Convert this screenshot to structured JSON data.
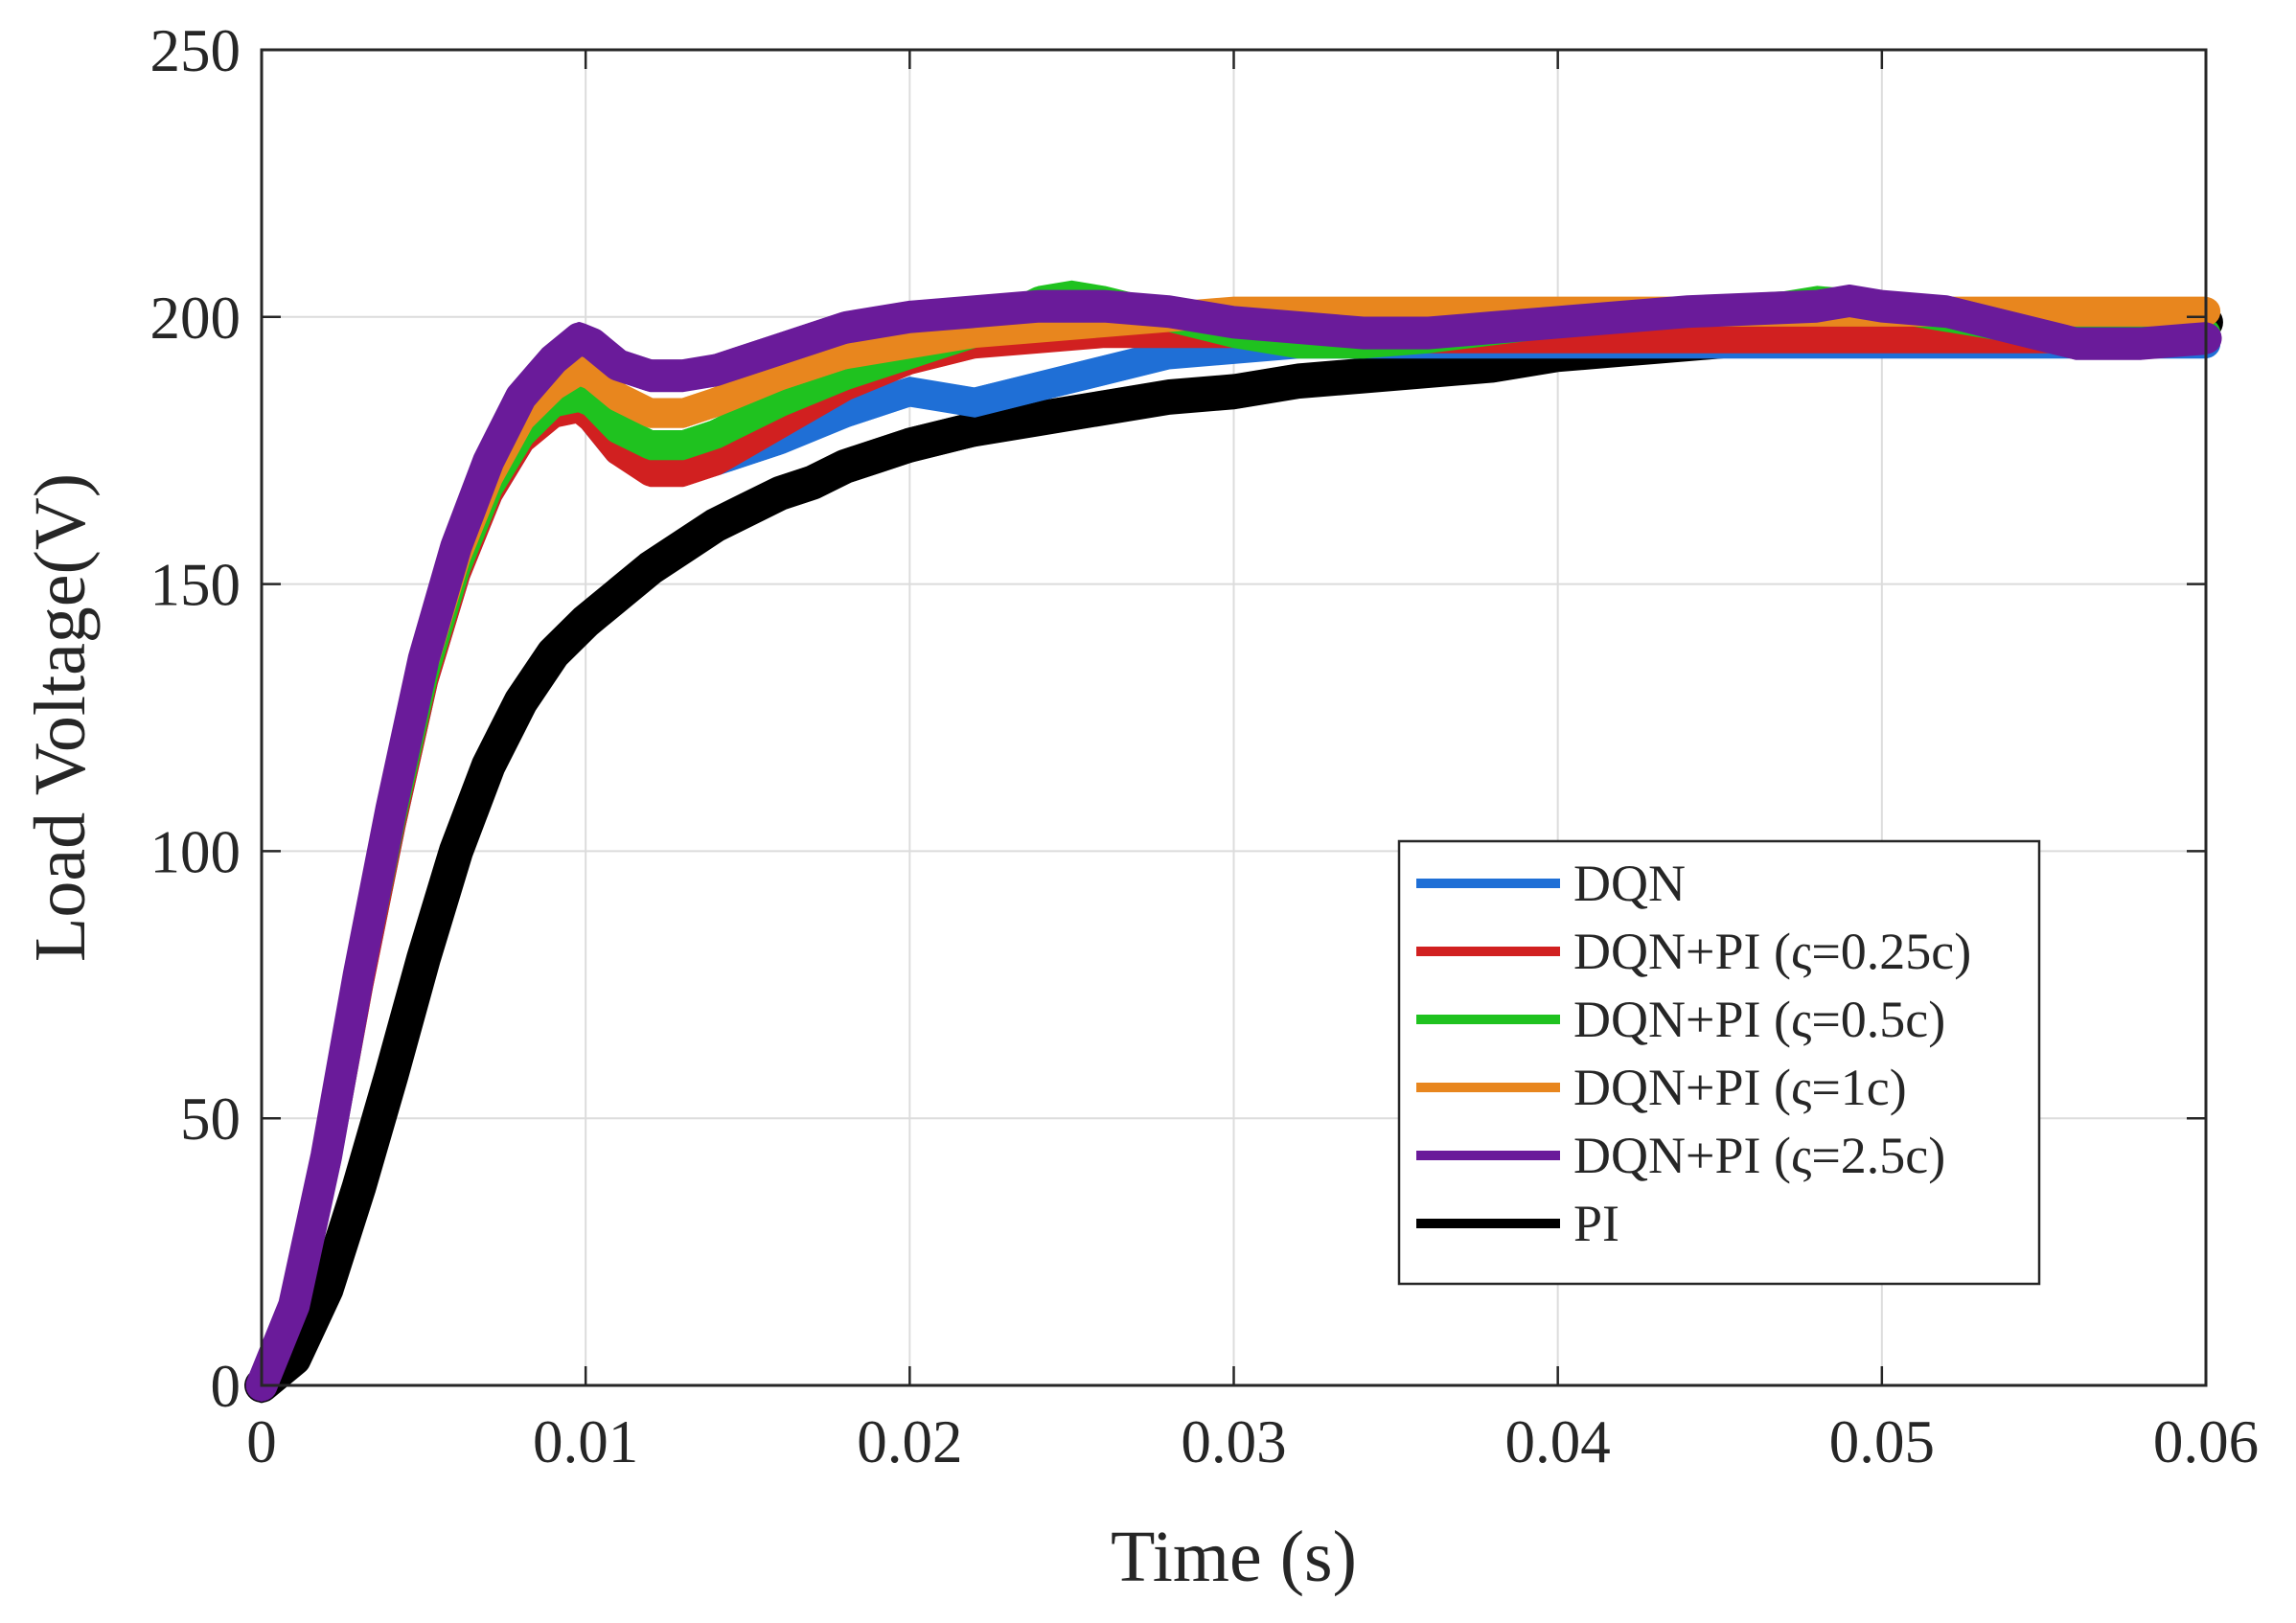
{
  "chart_data": {
    "type": "line",
    "title": "",
    "xlabel": "Time (s)",
    "ylabel": "Load Voltage(V)",
    "xlim": [
      0,
      0.06
    ],
    "ylim": [
      0,
      250
    ],
    "grid": true,
    "legend_position": "lower-right",
    "x_ticks": [
      0,
      0.01,
      0.02,
      0.03,
      0.04,
      0.05,
      0.06
    ],
    "x_tick_labels": [
      "0",
      "0.01",
      "0.02",
      "0.03",
      "0.04",
      "0.05",
      "0.06"
    ],
    "y_ticks": [
      0,
      50,
      100,
      150,
      200,
      250
    ],
    "y_tick_labels": [
      "0",
      "50",
      "100",
      "150",
      "200",
      "250"
    ],
    "series": [
      {
        "name": "PI",
        "color": "#000000",
        "band": 5,
        "points": [
          [
            0,
            0
          ],
          [
            0.001,
            5
          ],
          [
            0.002,
            18
          ],
          [
            0.003,
            37
          ],
          [
            0.004,
            58
          ],
          [
            0.005,
            80
          ],
          [
            0.006,
            100
          ],
          [
            0.007,
            116
          ],
          [
            0.008,
            128
          ],
          [
            0.009,
            137
          ],
          [
            0.01,
            143
          ],
          [
            0.011,
            148
          ],
          [
            0.012,
            153
          ],
          [
            0.013,
            157
          ],
          [
            0.014,
            161
          ],
          [
            0.015,
            164
          ],
          [
            0.016,
            167
          ],
          [
            0.017,
            169
          ],
          [
            0.018,
            172
          ],
          [
            0.019,
            174
          ],
          [
            0.02,
            176
          ],
          [
            0.022,
            179
          ],
          [
            0.024,
            181
          ],
          [
            0.026,
            183
          ],
          [
            0.028,
            185
          ],
          [
            0.03,
            186
          ],
          [
            0.032,
            188
          ],
          [
            0.034,
            189
          ],
          [
            0.036,
            190
          ],
          [
            0.038,
            191
          ],
          [
            0.04,
            193
          ],
          [
            0.042,
            194
          ],
          [
            0.044,
            195
          ],
          [
            0.046,
            196
          ],
          [
            0.048,
            197
          ],
          [
            0.05,
            198
          ],
          [
            0.052,
            199
          ],
          [
            0.054,
            199
          ],
          [
            0.056,
            199
          ],
          [
            0.058,
            199
          ],
          [
            0.06,
            199
          ]
        ]
      },
      {
        "name": "DQN",
        "color": "#1f6fd6",
        "band": 4,
        "points": [
          [
            0,
            0
          ],
          [
            0.001,
            15
          ],
          [
            0.002,
            42
          ],
          [
            0.003,
            75
          ],
          [
            0.004,
            105
          ],
          [
            0.005,
            132
          ],
          [
            0.006,
            152
          ],
          [
            0.007,
            167
          ],
          [
            0.008,
            177
          ],
          [
            0.009,
            183
          ],
          [
            0.0098,
            184
          ],
          [
            0.0102,
            181
          ],
          [
            0.011,
            175
          ],
          [
            0.012,
            172
          ],
          [
            0.013,
            172
          ],
          [
            0.014,
            173
          ],
          [
            0.016,
            177
          ],
          [
            0.018,
            182
          ],
          [
            0.019,
            184
          ],
          [
            0.02,
            186
          ],
          [
            0.021,
            185
          ],
          [
            0.022,
            184
          ],
          [
            0.024,
            187
          ],
          [
            0.026,
            190
          ],
          [
            0.028,
            193
          ],
          [
            0.03,
            194
          ],
          [
            0.032,
            195
          ],
          [
            0.034,
            195
          ],
          [
            0.036,
            195
          ],
          [
            0.04,
            195
          ],
          [
            0.044,
            195
          ],
          [
            0.048,
            195
          ],
          [
            0.052,
            195
          ],
          [
            0.056,
            195
          ],
          [
            0.06,
            195
          ]
        ]
      },
      {
        "name": "DQN+PI (ς=0.25c)",
        "color": "#d12020",
        "band": 4,
        "points": [
          [
            0,
            0
          ],
          [
            0.001,
            15
          ],
          [
            0.002,
            42
          ],
          [
            0.003,
            75
          ],
          [
            0.004,
            105
          ],
          [
            0.005,
            132
          ],
          [
            0.006,
            152
          ],
          [
            0.007,
            167
          ],
          [
            0.008,
            177
          ],
          [
            0.009,
            182
          ],
          [
            0.0098,
            183
          ],
          [
            0.0102,
            181
          ],
          [
            0.011,
            175
          ],
          [
            0.012,
            171
          ],
          [
            0.013,
            171
          ],
          [
            0.014,
            173
          ],
          [
            0.016,
            180
          ],
          [
            0.018,
            187
          ],
          [
            0.02,
            192
          ],
          [
            0.022,
            195
          ],
          [
            0.024,
            196
          ],
          [
            0.026,
            197
          ],
          [
            0.028,
            197
          ],
          [
            0.03,
            197
          ],
          [
            0.032,
            196
          ],
          [
            0.034,
            196
          ],
          [
            0.036,
            196
          ],
          [
            0.04,
            196
          ],
          [
            0.044,
            196
          ],
          [
            0.048,
            196
          ],
          [
            0.052,
            196
          ],
          [
            0.056,
            196
          ],
          [
            0.06,
            196
          ]
        ]
      },
      {
        "name": "DQN+PI (ς=0.5c)",
        "color": "#1fc21f",
        "band": 4,
        "points": [
          [
            0,
            0
          ],
          [
            0.001,
            15
          ],
          [
            0.002,
            42
          ],
          [
            0.003,
            76
          ],
          [
            0.004,
            106
          ],
          [
            0.005,
            133
          ],
          [
            0.006,
            153
          ],
          [
            0.007,
            168
          ],
          [
            0.008,
            178
          ],
          [
            0.009,
            184
          ],
          [
            0.0098,
            185
          ],
          [
            0.0102,
            184
          ],
          [
            0.011,
            179
          ],
          [
            0.012,
            176
          ],
          [
            0.013,
            176
          ],
          [
            0.014,
            178
          ],
          [
            0.016,
            184
          ],
          [
            0.018,
            189
          ],
          [
            0.02,
            193
          ],
          [
            0.022,
            197
          ],
          [
            0.023,
            200
          ],
          [
            0.024,
            203
          ],
          [
            0.025,
            204
          ],
          [
            0.026,
            203
          ],
          [
            0.028,
            200
          ],
          [
            0.03,
            197
          ],
          [
            0.032,
            195
          ],
          [
            0.034,
            195
          ],
          [
            0.036,
            196
          ],
          [
            0.04,
            199
          ],
          [
            0.044,
            201
          ],
          [
            0.047,
            202
          ],
          [
            0.048,
            203
          ],
          [
            0.05,
            202
          ],
          [
            0.052,
            200
          ],
          [
            0.054,
            198
          ],
          [
            0.056,
            196
          ],
          [
            0.058,
            196
          ],
          [
            0.06,
            197
          ]
        ]
      },
      {
        "name": "DQN+PI (ς=1c)",
        "color": "#e8861e",
        "band": 4,
        "points": [
          [
            0,
            0
          ],
          [
            0.001,
            15
          ],
          [
            0.002,
            43
          ],
          [
            0.003,
            77
          ],
          [
            0.004,
            108
          ],
          [
            0.005,
            135
          ],
          [
            0.006,
            155
          ],
          [
            0.007,
            170
          ],
          [
            0.008,
            181
          ],
          [
            0.009,
            187
          ],
          [
            0.0098,
            190
          ],
          [
            0.0102,
            189
          ],
          [
            0.011,
            185
          ],
          [
            0.012,
            182
          ],
          [
            0.013,
            182
          ],
          [
            0.014,
            184
          ],
          [
            0.016,
            189
          ],
          [
            0.018,
            193
          ],
          [
            0.02,
            195
          ],
          [
            0.022,
            197
          ],
          [
            0.024,
            198
          ],
          [
            0.026,
            199
          ],
          [
            0.028,
            200
          ],
          [
            0.03,
            201
          ],
          [
            0.032,
            201
          ],
          [
            0.034,
            201
          ],
          [
            0.036,
            201
          ],
          [
            0.04,
            201
          ],
          [
            0.044,
            201
          ],
          [
            0.048,
            201
          ],
          [
            0.052,
            201
          ],
          [
            0.056,
            201
          ],
          [
            0.06,
            201
          ]
        ]
      },
      {
        "name": "DQN+PI (ς=2.5c)",
        "color": "#6a1b9a",
        "band": 4.5,
        "points": [
          [
            0,
            0
          ],
          [
            0.001,
            15
          ],
          [
            0.002,
            43
          ],
          [
            0.003,
            77
          ],
          [
            0.004,
            108
          ],
          [
            0.005,
            136
          ],
          [
            0.006,
            157
          ],
          [
            0.007,
            173
          ],
          [
            0.008,
            185
          ],
          [
            0.009,
            192
          ],
          [
            0.0098,
            196
          ],
          [
            0.0102,
            195
          ],
          [
            0.011,
            191
          ],
          [
            0.012,
            189
          ],
          [
            0.013,
            189
          ],
          [
            0.014,
            190
          ],
          [
            0.016,
            194
          ],
          [
            0.018,
            198
          ],
          [
            0.02,
            200
          ],
          [
            0.022,
            201
          ],
          [
            0.024,
            202
          ],
          [
            0.026,
            202
          ],
          [
            0.028,
            201
          ],
          [
            0.03,
            199
          ],
          [
            0.032,
            198
          ],
          [
            0.034,
            197
          ],
          [
            0.036,
            197
          ],
          [
            0.038,
            198
          ],
          [
            0.04,
            199
          ],
          [
            0.044,
            201
          ],
          [
            0.048,
            202
          ],
          [
            0.049,
            203
          ],
          [
            0.05,
            202
          ],
          [
            0.052,
            201
          ],
          [
            0.054,
            198
          ],
          [
            0.056,
            195
          ],
          [
            0.058,
            195
          ],
          [
            0.06,
            196
          ]
        ]
      }
    ],
    "legend_order": [
      "DQN",
      "DQN+PI (ς=0.25c)",
      "DQN+PI (ς=0.5c)",
      "DQN+PI (ς=1c)",
      "DQN+PI (ς=2.5c)",
      "PI"
    ]
  }
}
